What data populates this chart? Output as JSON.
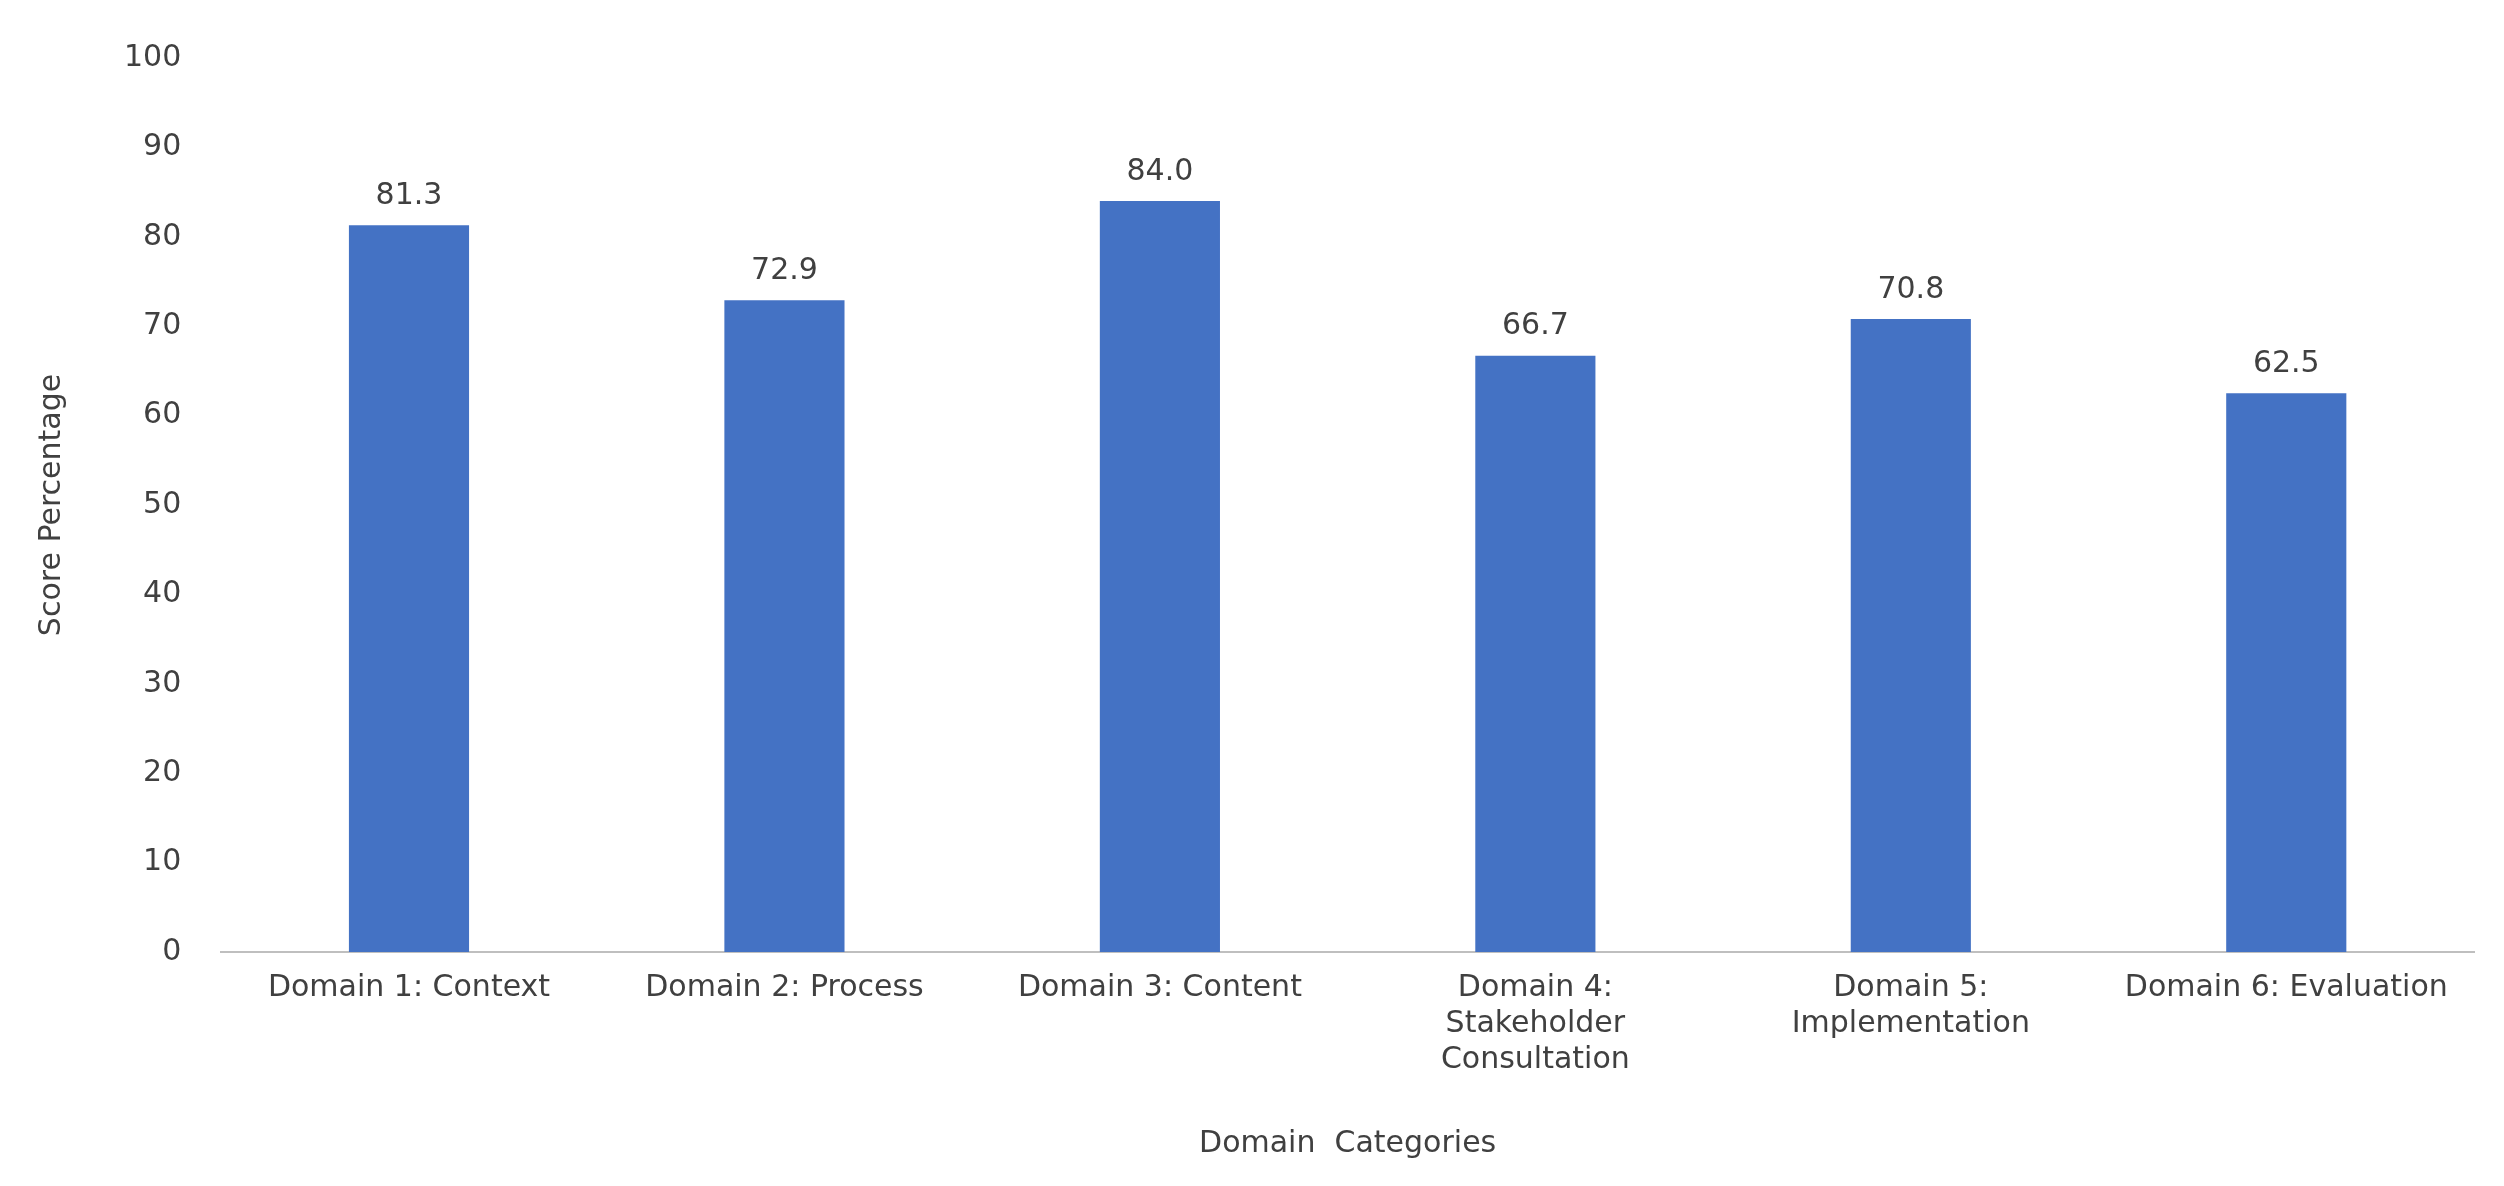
{
  "chart_data": {
    "type": "bar",
    "xlabel": "Domain  Categories",
    "ylabel": "Score Percentage",
    "categories": [
      "Domain 1: Context",
      "Domain 2: Process",
      "Domain 3: Content",
      "Domain 4: Stakeholder Consultation",
      "Domain 5: Implementation",
      "Domain 6: Evaluation"
    ],
    "values": [
      81.3,
      72.9,
      84.0,
      66.7,
      70.8,
      62.5
    ],
    "value_labels": [
      "81.3",
      "72.9",
      "84.0",
      "66.7",
      "70.8",
      "62.5"
    ],
    "color": "#4472c4",
    "ylim": [
      0,
      100
    ],
    "yticks": [
      0,
      10,
      20,
      30,
      40,
      50,
      60,
      70,
      80,
      90,
      100
    ],
    "grid": false,
    "legend": false
  }
}
